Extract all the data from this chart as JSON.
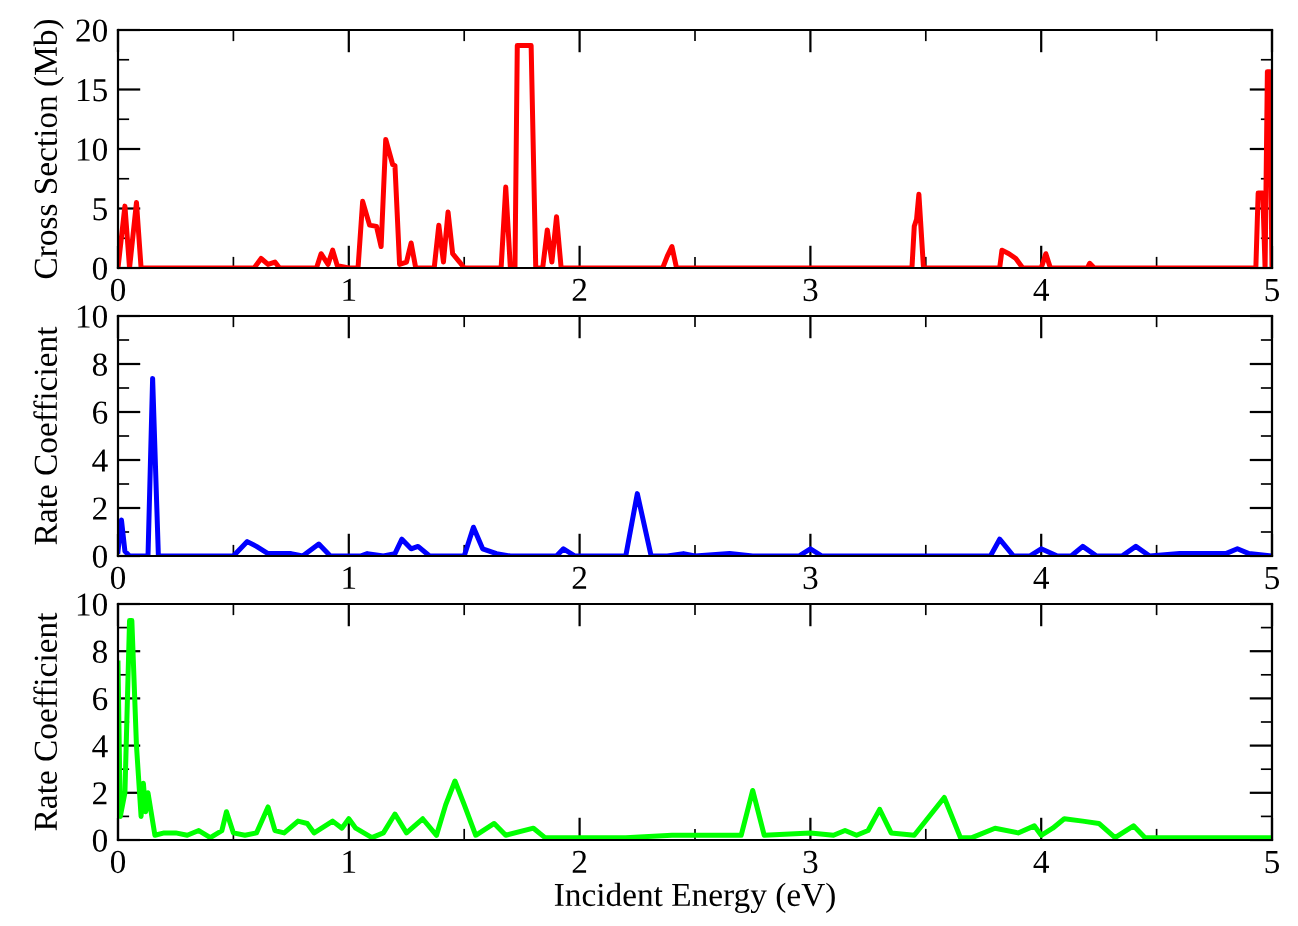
{
  "chart_data": [
    {
      "type": "line",
      "ylabel": "Cross Section (Mb)",
      "xlim": [
        0,
        5
      ],
      "xticks": [
        0,
        1,
        2,
        3,
        4,
        5
      ],
      "ylim": [
        0,
        20
      ],
      "yticks": [
        0,
        5,
        10,
        15,
        20
      ],
      "series": [
        {
          "color": "#ff0000",
          "x": [
            0,
            0.03,
            0.05,
            0.08,
            0.1,
            0.59,
            0.62,
            0.65,
            0.68,
            0.7,
            0.86,
            0.88,
            0.91,
            0.93,
            0.95,
            1.0,
            1.04,
            1.06,
            1.09,
            1.12,
            1.14,
            1.16,
            1.19,
            1.2,
            1.22,
            1.25,
            1.27,
            1.29,
            1.37,
            1.39,
            1.41,
            1.43,
            1.45,
            1.48,
            1.5,
            1.66,
            1.68,
            1.7,
            1.72,
            1.73,
            1.79,
            1.81,
            1.84,
            1.86,
            1.88,
            1.9,
            1.92,
            2.36,
            2.38,
            2.4,
            2.42,
            3.44,
            3.45,
            3.46,
            3.47,
            3.49,
            3.82,
            3.83,
            3.86,
            3.89,
            3.92,
            4.0,
            4.02,
            4.04,
            4.2,
            4.21,
            4.23,
            4.93,
            4.94,
            4.96,
            4.97,
            4.98,
            4.99,
            5.0
          ],
          "values": [
            0,
            5.2,
            0,
            5.5,
            0,
            0,
            0.8,
            0.3,
            0.5,
            0,
            0,
            1.2,
            0.3,
            1.5,
            0.2,
            0,
            0,
            5.6,
            3.6,
            3.5,
            1.8,
            10.8,
            8.7,
            8.6,
            0.3,
            0.5,
            2.1,
            0,
            0,
            3.6,
            0.5,
            4.7,
            1.2,
            0.5,
            0,
            0,
            6.8,
            0,
            0,
            18.7,
            18.7,
            0,
            0,
            3.2,
            0.5,
            4.3,
            0,
            0,
            1,
            1.8,
            0,
            0,
            3.5,
            4.1,
            6.2,
            0,
            0,
            1.5,
            1.2,
            0.8,
            0,
            0,
            1.2,
            0,
            0,
            0.4,
            0,
            0,
            6.3,
            6.3,
            0,
            16.5,
            16.5,
            0
          ]
        }
      ]
    },
    {
      "type": "line",
      "ylabel": "Rate Coefficient",
      "xlim": [
        0,
        5
      ],
      "xticks": [
        0,
        1,
        2,
        3,
        4,
        5
      ],
      "ylim": [
        0,
        10
      ],
      "yticks": [
        0,
        2,
        4,
        6,
        8,
        10
      ],
      "series": [
        {
          "color": "#0000ff",
          "x": [
            0,
            0.015,
            0.03,
            0.05,
            0.13,
            0.15,
            0.175,
            0.5,
            0.56,
            0.6,
            0.65,
            0.75,
            0.8,
            0.87,
            0.92,
            1.05,
            1.08,
            1.15,
            1.2,
            1.23,
            1.27,
            1.3,
            1.35,
            1.5,
            1.54,
            1.58,
            1.64,
            1.7,
            1.9,
            1.93,
            1.98,
            2.2,
            2.25,
            2.31,
            2.38,
            2.45,
            2.5,
            2.65,
            2.75,
            2.95,
            3.0,
            3.05,
            3.78,
            3.82,
            3.88,
            3.95,
            4.0,
            4.07,
            4.13,
            4.18,
            4.24,
            4.35,
            4.41,
            4.47,
            4.6,
            4.8,
            4.85,
            4.9,
            5.0
          ],
          "values": [
            0.2,
            1.5,
            0.2,
            0,
            0,
            7.4,
            0,
            0,
            0.6,
            0.4,
            0.1,
            0.1,
            0,
            0.5,
            0,
            0,
            0.1,
            0,
            0.1,
            0.7,
            0.3,
            0.4,
            0,
            0,
            1.2,
            0.3,
            0.1,
            0,
            0,
            0.3,
            0,
            0,
            2.6,
            0,
            0,
            0.1,
            0,
            0.1,
            0,
            0,
            0.3,
            0,
            0,
            0.7,
            0,
            0,
            0.3,
            0,
            0,
            0.4,
            0,
            0,
            0.4,
            0,
            0.1,
            0.1,
            0.3,
            0.1,
            0
          ]
        }
      ]
    },
    {
      "type": "line",
      "xlabel": "Incident Energy (eV)",
      "ylabel": "Rate Coefficient",
      "xlim": [
        0,
        5
      ],
      "xticks": [
        0,
        1,
        2,
        3,
        4,
        5
      ],
      "ylim": [
        0,
        10
      ],
      "yticks": [
        0,
        2,
        4,
        6,
        8,
        10
      ],
      "series": [
        {
          "color": "#00ff00",
          "x": [
            0,
            0.01,
            0.03,
            0.05,
            0.06,
            0.08,
            0.1,
            0.11,
            0.12,
            0.13,
            0.16,
            0.2,
            0.25,
            0.3,
            0.35,
            0.4,
            0.45,
            0.47,
            0.5,
            0.55,
            0.6,
            0.65,
            0.68,
            0.72,
            0.78,
            0.82,
            0.85,
            0.93,
            0.97,
            1.0,
            1.03,
            1.1,
            1.15,
            1.2,
            1.25,
            1.32,
            1.38,
            1.42,
            1.46,
            1.5,
            1.55,
            1.63,
            1.68,
            1.8,
            1.85,
            2.0,
            2.2,
            2.4,
            2.6,
            2.7,
            2.75,
            2.8,
            3.0,
            3.1,
            3.15,
            3.2,
            3.25,
            3.3,
            3.35,
            3.45,
            3.58,
            3.65,
            3.7,
            3.8,
            3.9,
            3.97,
            4.0,
            4.05,
            4.1,
            4.18,
            4.25,
            4.32,
            4.4,
            4.45,
            4.6,
            4.8,
            5.0
          ],
          "values": [
            7.5,
            1,
            2,
            9.3,
            9.3,
            4,
            1,
            2.4,
            1.2,
            2,
            0.2,
            0.3,
            0.3,
            0.2,
            0.4,
            0.1,
            0.4,
            1.2,
            0.3,
            0.2,
            0.3,
            1.4,
            0.4,
            0.3,
            0.8,
            0.7,
            0.3,
            0.8,
            0.5,
            0.9,
            0.5,
            0.1,
            0.3,
            1.1,
            0.3,
            0.9,
            0.2,
            1.5,
            2.5,
            1.5,
            0.2,
            0.7,
            0.2,
            0.5,
            0.1,
            0.1,
            0.1,
            0.2,
            0.2,
            0.2,
            2.1,
            0.2,
            0.3,
            0.2,
            0.4,
            0.2,
            0.4,
            1.3,
            0.3,
            0.2,
            1.8,
            0.1,
            0.1,
            0.5,
            0.3,
            0.6,
            0.2,
            0.5,
            0.9,
            0.8,
            0.7,
            0.1,
            0.6,
            0.1,
            0.1,
            0.1,
            0.1
          ]
        }
      ]
    }
  ]
}
